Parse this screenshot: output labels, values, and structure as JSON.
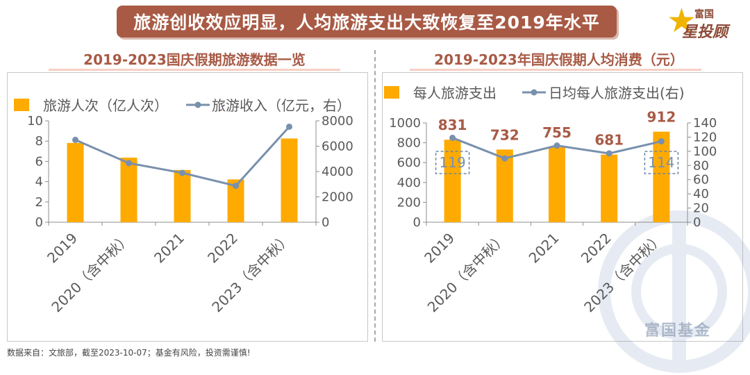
{
  "banner": {
    "title": "旅游创收效应明显，人均旅游支出大致恢复至2019年水平"
  },
  "logo": {
    "top_text": "富国",
    "bottom_text": "星投顾",
    "icon": "star-icon"
  },
  "watermark": {
    "text": "富国基金"
  },
  "footer": {
    "source": "数据来自：文旅部，截至2023-10-07；基金有风险，投资需谨慎!"
  },
  "colors": {
    "bar": "#ffaa00",
    "line": "#7890ad",
    "title": "#a85a45",
    "label_value": "#a85a45",
    "axis_text": "#595959"
  },
  "chart_data": [
    {
      "type": "bar",
      "title": "2019-2023国庆假期旅游数据一览",
      "categories": [
        "2019",
        "2020（含中秋）",
        "2021",
        "2022",
        "2023（含中秋）"
      ],
      "series": [
        {
          "name": "旅游人次（亿人次）",
          "type": "bar",
          "axis": "left",
          "values": [
            7.82,
            6.37,
            5.15,
            4.22,
            8.26
          ]
        },
        {
          "name": "旅游收入（亿元，右）",
          "type": "line",
          "axis": "right",
          "values": [
            6497,
            4666,
            3891,
            2872,
            7535
          ]
        }
      ],
      "y_left": {
        "min": 0,
        "max": 10,
        "ticks": [
          0,
          2,
          4,
          6,
          8,
          10
        ]
      },
      "y_right": {
        "min": 0,
        "max": 8000,
        "ticks": [
          0,
          2000,
          4000,
          6000,
          8000
        ]
      },
      "legend": "top-left",
      "grid": false
    },
    {
      "type": "bar",
      "title": "2019-2023年国庆假期人均消费（元）",
      "categories": [
        "2019",
        "2020（含中秋）",
        "2021",
        "2022",
        "2023（含中秋）"
      ],
      "series": [
        {
          "name": "每人旅游支出",
          "type": "bar",
          "axis": "left",
          "values": [
            831,
            732,
            755,
            681,
            912
          ],
          "labels": [
            "831",
            "732",
            "755",
            "681",
            "912"
          ]
        },
        {
          "name": "日均每人旅游支出(右)",
          "type": "line",
          "axis": "right",
          "values": [
            119,
            90,
            108,
            97,
            114
          ]
        }
      ],
      "highlight_labels": [
        {
          "index": 0,
          "text": "119"
        },
        {
          "index": 4,
          "text": "114"
        }
      ],
      "y_left": {
        "min": 0,
        "max": 1000,
        "ticks": [
          0,
          200,
          400,
          600,
          800,
          1000
        ]
      },
      "y_right": {
        "min": 0,
        "max": 140,
        "ticks": [
          0,
          20,
          40,
          60,
          80,
          100,
          120,
          140
        ]
      },
      "legend": "top-left",
      "grid": false
    }
  ]
}
